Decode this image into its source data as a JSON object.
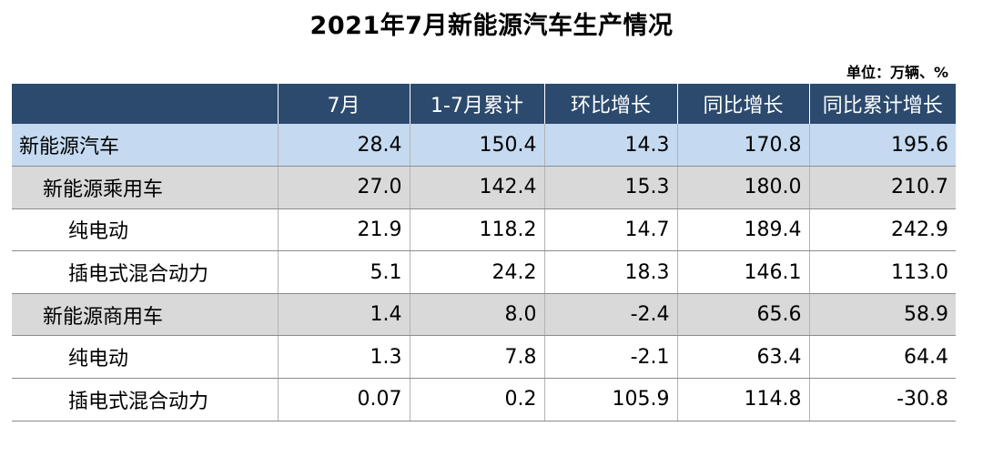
{
  "title": "2021年7月新能源汽车生产情况",
  "unit": "单位：万辆、%",
  "table": {
    "headers": [
      "",
      "7月",
      "1-7月累计",
      "环比增长",
      "同比增长",
      "同比累计增长"
    ],
    "rows": [
      {
        "name": "新能源汽车",
        "level": 0,
        "values": [
          "28.4",
          "150.4",
          "14.3",
          "170.8",
          "195.6"
        ]
      },
      {
        "name": "新能源乘用车",
        "level": 1,
        "values": [
          "27.0",
          "142.4",
          "15.3",
          "180.0",
          "210.7"
        ]
      },
      {
        "name": "纯电动",
        "level": 2,
        "values": [
          "21.9",
          "118.2",
          "14.7",
          "189.4",
          "242.9"
        ]
      },
      {
        "name": "插电式混合动力",
        "level": 2,
        "values": [
          "5.1",
          "24.2",
          "18.3",
          "146.1",
          "113.0"
        ]
      },
      {
        "name": "新能源商用车",
        "level": 1,
        "values": [
          "1.4",
          "8.0",
          "-2.4",
          "65.6",
          "58.9"
        ]
      },
      {
        "name": "纯电动",
        "level": 2,
        "values": [
          "1.3",
          "7.8",
          "-2.1",
          "63.4",
          "64.4"
        ]
      },
      {
        "name": "插电式混合动力",
        "level": 2,
        "values": [
          "0.07",
          "0.2",
          "105.9",
          "114.8",
          "-30.8"
        ]
      }
    ]
  },
  "colors": {
    "header_bg": "#2c4a6e",
    "header_text": "#ffffff",
    "level0_bg": "#c5daf0",
    "level1_bg": "#d9d9d9",
    "level2_bg": "#ffffff"
  }
}
